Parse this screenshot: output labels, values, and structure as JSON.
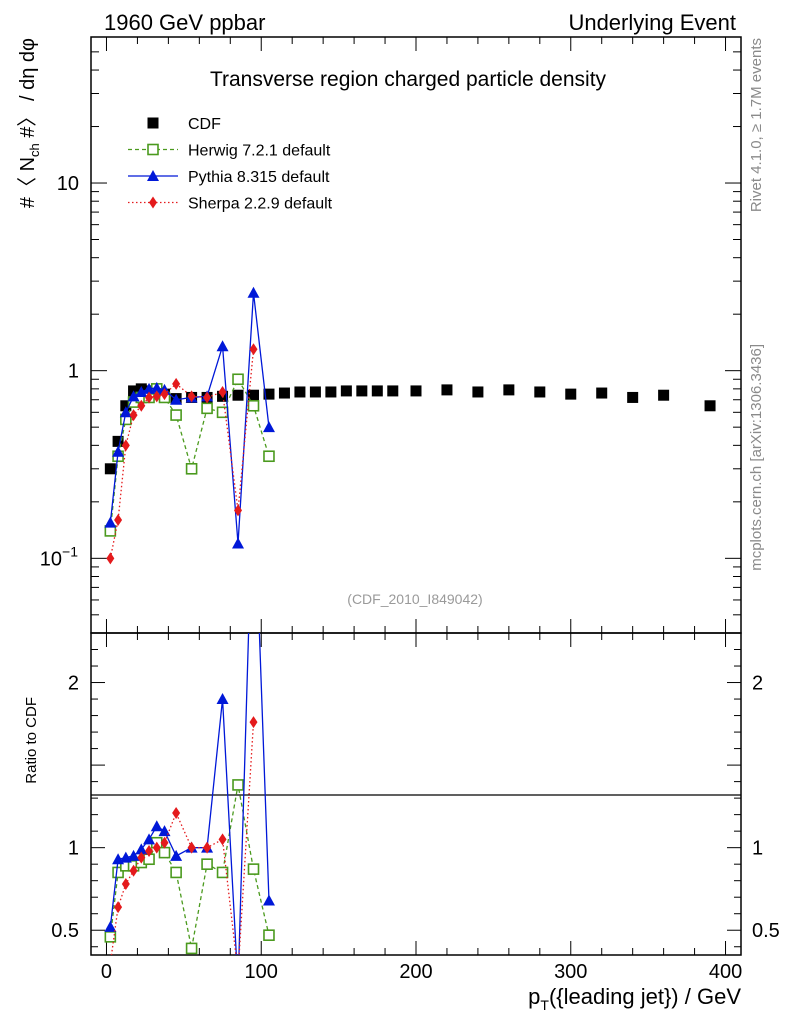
{
  "header": {
    "left": "1960 GeV ppbar",
    "right": "Underlying Event"
  },
  "side_text": {
    "version": "Rivet 4.1.0, ≥ 1.7M events",
    "site": "mcplots.cern.ch [arXiv:1306.3436]"
  },
  "chart_data": {
    "type": "scatter",
    "title": "Transverse region charged particle density",
    "source_label": "(CDF_2010_I849042)",
    "xlabel": "p_T({leading jet}) / GeV",
    "ylabel": "#〈 N_ch #〉 / dη dφ",
    "ratio_ylabel": "Ratio to CDF",
    "xlim": [
      -10,
      410
    ],
    "ylim": [
      0.04,
      60
    ],
    "yscale": "log",
    "ratio_ylim": [
      0.35,
      2.3
    ],
    "x_ticks": [
      "0",
      "100",
      "200",
      "300",
      "400"
    ],
    "y_ticks": [
      "10^-1",
      "1",
      "10"
    ],
    "ratio_ticks": [
      "0.5",
      "1",
      "2"
    ],
    "legend": [
      "CDF",
      "Herwig 7.2.1 default",
      "Pythia 8.315 default",
      "Sherpa 2.2.9 default"
    ],
    "series": [
      {
        "name": "CDF",
        "color": "#000000",
        "marker": "square-filled",
        "x": [
          2.5,
          7.5,
          12.5,
          17.5,
          22.5,
          27.5,
          32.5,
          37.5,
          45,
          55,
          65,
          75,
          85,
          95,
          105,
          115,
          125,
          135,
          145,
          155,
          165,
          175,
          185,
          200,
          220,
          240,
          260,
          280,
          300,
          320,
          340,
          360,
          390
        ],
        "y": [
          0.3,
          0.42,
          0.65,
          0.78,
          0.8,
          0.78,
          0.77,
          0.75,
          0.71,
          0.72,
          0.72,
          0.73,
          0.74,
          0.74,
          0.75,
          0.76,
          0.77,
          0.77,
          0.77,
          0.78,
          0.78,
          0.78,
          0.78,
          0.78,
          0.79,
          0.77,
          0.79,
          0.77,
          0.75,
          0.76,
          0.72,
          0.74,
          0.65
        ]
      },
      {
        "name": "Herwig 7.2.1 default",
        "color": "#4b9a1e",
        "marker": "square-open",
        "x": [
          2.5,
          7.5,
          12.5,
          17.5,
          22.5,
          27.5,
          32.5,
          37.5,
          45,
          55,
          65,
          75,
          85,
          95,
          105
        ],
        "y": [
          0.14,
          0.35,
          0.55,
          0.68,
          0.72,
          0.72,
          0.8,
          0.72,
          0.58,
          0.3,
          0.63,
          0.6,
          0.9,
          0.65,
          0.35
        ],
        "ratio": [
          0.46,
          0.85,
          0.89,
          0.89,
          0.91,
          0.93,
          1.03,
          0.97,
          0.85,
          0.39,
          0.9,
          0.85,
          1.38,
          0.87,
          0.47
        ]
      },
      {
        "name": "Pythia 8.315 default",
        "color": "#0018d8",
        "marker": "triangle-filled",
        "x": [
          2.5,
          7.5,
          12.5,
          17.5,
          22.5,
          27.5,
          32.5,
          37.5,
          45,
          55,
          65,
          75,
          85,
          95,
          105
        ],
        "y": [
          0.155,
          0.37,
          0.6,
          0.73,
          0.77,
          0.8,
          0.81,
          0.79,
          0.7,
          0.72,
          0.73,
          1.35,
          0.12,
          2.6,
          0.5
        ],
        "ratio": [
          0.52,
          0.93,
          0.94,
          0.95,
          0.99,
          1.05,
          1.13,
          1.1,
          0.95,
          1.0,
          1.0,
          1.9,
          0.16,
          3.3,
          0.68
        ]
      },
      {
        "name": "Sherpa 2.2.9 default",
        "color": "#e41a1c",
        "marker": "diamond-filled",
        "x": [
          2.5,
          7.5,
          12.5,
          17.5,
          22.5,
          27.5,
          32.5,
          37.5,
          45,
          55,
          65,
          75,
          85,
          95
        ],
        "y": [
          0.1,
          0.16,
          0.4,
          0.58,
          0.65,
          0.72,
          0.73,
          0.75,
          0.85,
          0.73,
          0.72,
          0.77,
          0.18,
          1.3
        ],
        "ratio": [
          0.3,
          0.64,
          0.78,
          0.86,
          0.94,
          0.98,
          1.0,
          1.03,
          1.21,
          1.0,
          1.0,
          1.05,
          0.24,
          1.76
        ]
      }
    ]
  }
}
